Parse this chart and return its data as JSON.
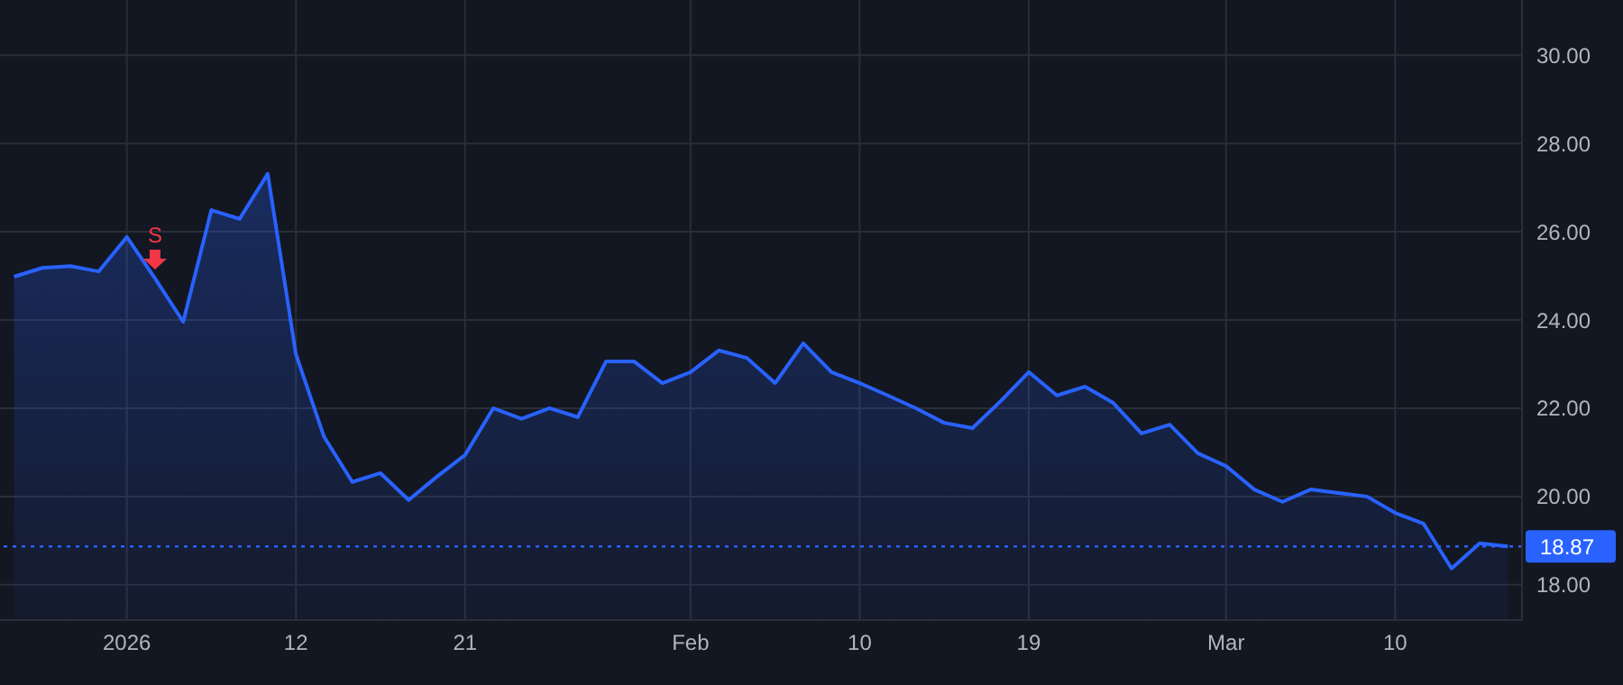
{
  "chart_data": {
    "type": "area",
    "categories": [
      null,
      null,
      null,
      null,
      "2026",
      null,
      null,
      null,
      null,
      null,
      "12",
      null,
      null,
      null,
      null,
      null,
      "21",
      null,
      null,
      null,
      null,
      null,
      null,
      null,
      "Feb",
      null,
      null,
      null,
      null,
      null,
      "10",
      null,
      null,
      null,
      null,
      null,
      "19",
      null,
      null,
      null,
      null,
      null,
      null,
      "Mar",
      null,
      null,
      null,
      null,
      null,
      "10",
      null,
      null,
      null,
      null
    ],
    "series": [
      {
        "color": "#2962ff",
        "values": [
          24.98,
          25.18,
          25.22,
          25.1,
          25.88,
          24.94,
          23.96,
          26.49,
          26.29,
          27.31,
          23.22,
          21.35,
          20.33,
          20.53,
          19.92,
          20.45,
          20.94,
          22.0,
          21.76,
          22.0,
          21.8,
          23.06,
          23.06,
          22.57,
          22.82,
          23.31,
          23.14,
          22.57,
          23.47,
          22.82,
          22.57,
          22.29,
          22.0,
          21.67,
          21.55,
          22.16,
          22.82,
          22.29,
          22.49,
          22.12,
          21.43,
          21.63,
          20.98,
          20.69,
          20.16,
          19.88,
          20.16,
          20.08,
          20.0,
          19.63,
          19.39,
          18.37,
          18.94,
          18.87
        ]
      }
    ],
    "ylim": [
      17.2,
      31.25
    ],
    "yticks": [
      {
        "value": 18,
        "label": "18.00"
      },
      {
        "value": 20,
        "label": "20.00"
      },
      {
        "value": 22,
        "label": "22.00"
      },
      {
        "value": 24,
        "label": "24.00"
      },
      {
        "value": 26,
        "label": "26.00"
      },
      {
        "value": 28,
        "label": "28.00"
      },
      {
        "value": 30,
        "label": "30.00"
      }
    ],
    "ref_lines": [
      {
        "axis": "y",
        "value": 18.87,
        "label": "18.87",
        "color": "#2962ff",
        "line_style": "dotted"
      }
    ],
    "annotations": [
      {
        "text": "S",
        "y": 24.94
      }
    ],
    "grid": true,
    "marker": "none",
    "line_style": "solid"
  }
}
